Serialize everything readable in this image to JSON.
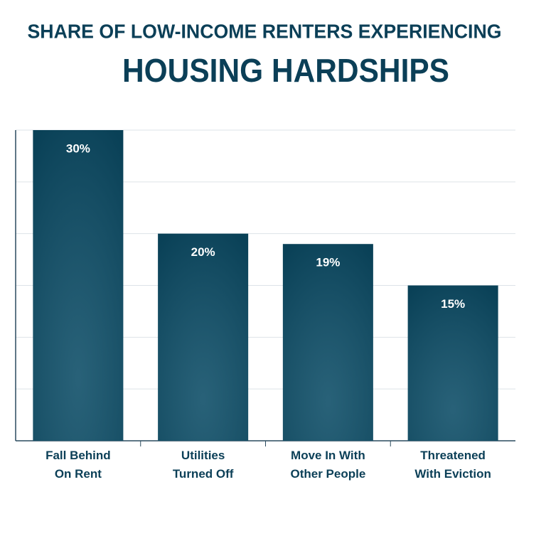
{
  "chart_data": {
    "type": "bar",
    "title": "SHARE OF LOW-INCOME RENTERS EXPERIENCING",
    "subtitle": "HOUSING HARDSHIPS",
    "categories": [
      "Fall Behind\nOn Rent",
      "Utilities\nTurned Off",
      "Move In With\nOther People",
      "Threatened\nWith Eviction"
    ],
    "values": [
      30,
      20,
      19,
      15
    ],
    "value_labels": [
      "30%",
      "20%",
      "19%",
      "15%"
    ],
    "color": "#0b4c66",
    "ylim": [
      0,
      30
    ],
    "yticks": [
      0,
      5,
      10,
      15,
      20,
      25,
      30
    ],
    "grid": true
  }
}
